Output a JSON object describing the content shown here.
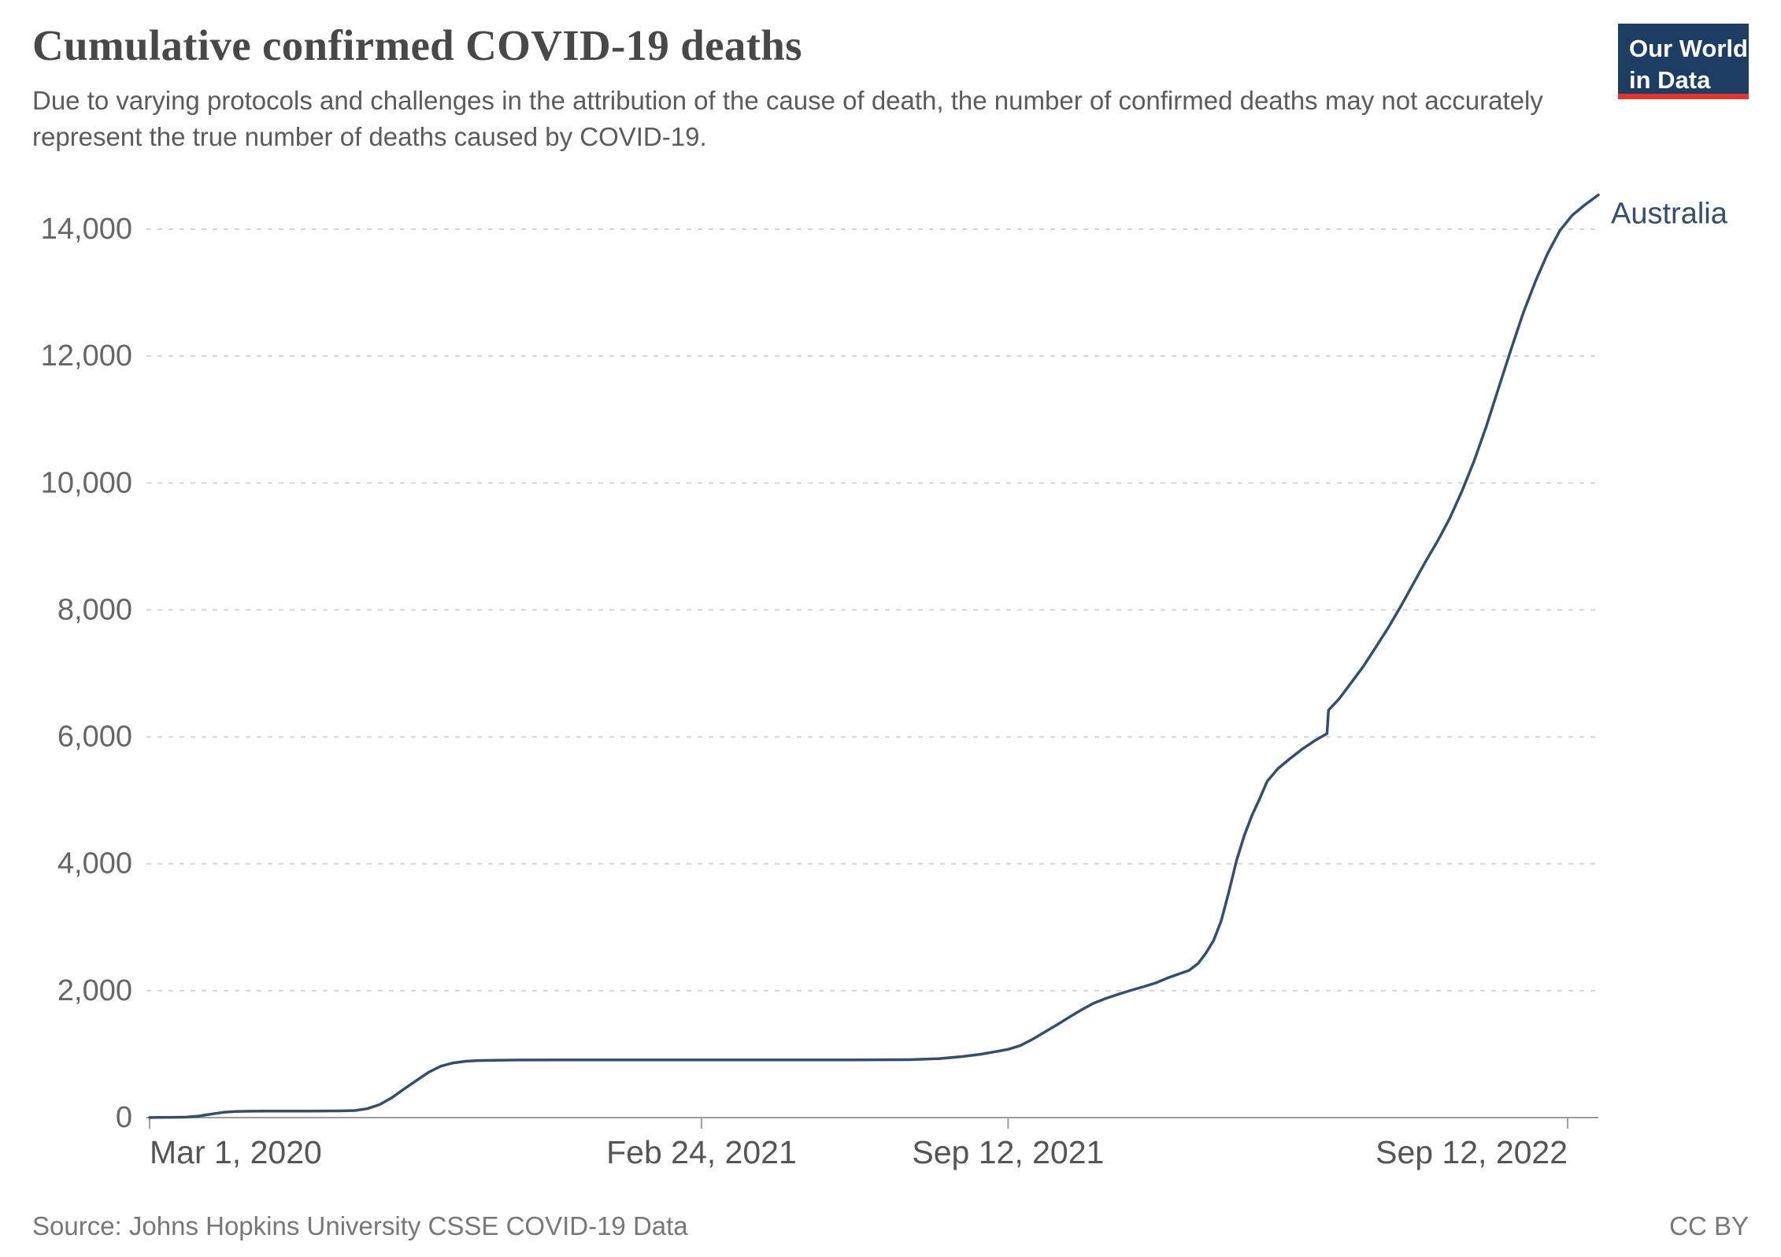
{
  "header": {
    "title": "Cumulative confirmed COVID-19 deaths",
    "subtitle": "Due to varying protocols and challenges in the attribution of the cause of death, the number of confirmed deaths may not accurately represent the true number of deaths caused by COVID-19."
  },
  "logo": {
    "line1": "Our World",
    "line2": "in Data",
    "background": "#1d3d63",
    "stripe": "#e5332d"
  },
  "footer": {
    "source": "Source: Johns Hopkins University CSSE COVID-19 Data",
    "license": "CC BY"
  },
  "chart_data": {
    "type": "line",
    "title": "Cumulative confirmed COVID-19 deaths",
    "xlabel": "",
    "ylabel": "",
    "x_unit": "days since Mar 1, 2020",
    "x_domain": [
      0,
      945
    ],
    "ylim": [
      0,
      14000
    ],
    "grid": true,
    "grid_color": "#d5d5d5",
    "axis_line_color": "#9e9e9e",
    "axis_text_color": "#666666",
    "x_tick_text_color": "#555555",
    "y_ticks": [
      0,
      2000,
      4000,
      6000,
      8000,
      10000,
      12000,
      14000
    ],
    "x_ticks": [
      {
        "day": 0,
        "label": "Mar 1, 2020",
        "align": "start"
      },
      {
        "day": 360,
        "label": "Feb 24, 2021",
        "align": "middle"
      },
      {
        "day": 560,
        "label": "Sep 12, 2021",
        "align": "middle"
      },
      {
        "day": 925,
        "label": "Sep 12, 2022",
        "align": "end"
      }
    ],
    "legend_position": "end-of-line-label",
    "series": [
      {
        "name": "Australia",
        "color": "#344f6e",
        "points": [
          [
            0,
            1
          ],
          [
            8,
            2
          ],
          [
            16,
            5
          ],
          [
            24,
            8
          ],
          [
            32,
            24
          ],
          [
            40,
            54
          ],
          [
            48,
            83
          ],
          [
            56,
            97
          ],
          [
            66,
            100
          ],
          [
            76,
            102
          ],
          [
            88,
            103
          ],
          [
            100,
            103
          ],
          [
            112,
            104
          ],
          [
            124,
            106
          ],
          [
            134,
            112
          ],
          [
            142,
            140
          ],
          [
            150,
            205
          ],
          [
            158,
            313
          ],
          [
            166,
            450
          ],
          [
            174,
            583
          ],
          [
            182,
            715
          ],
          [
            190,
            810
          ],
          [
            198,
            861
          ],
          [
            206,
            888
          ],
          [
            214,
            898
          ],
          [
            224,
            904
          ],
          [
            240,
            907
          ],
          [
            270,
            908
          ],
          [
            310,
            909
          ],
          [
            360,
            909
          ],
          [
            410,
            910
          ],
          [
            460,
            910
          ],
          [
            495,
            912
          ],
          [
            515,
            930
          ],
          [
            530,
            962
          ],
          [
            542,
            998
          ],
          [
            552,
            1040
          ],
          [
            560,
            1076
          ],
          [
            568,
            1135
          ],
          [
            576,
            1235
          ],
          [
            584,
            1350
          ],
          [
            592,
            1465
          ],
          [
            600,
            1585
          ],
          [
            608,
            1700
          ],
          [
            616,
            1805
          ],
          [
            624,
            1880
          ],
          [
            632,
            1945
          ],
          [
            640,
            2005
          ],
          [
            648,
            2060
          ],
          [
            656,
            2120
          ],
          [
            664,
            2200
          ],
          [
            671,
            2260
          ],
          [
            678,
            2320
          ],
          [
            684,
            2430
          ],
          [
            689,
            2590
          ],
          [
            694,
            2790
          ],
          [
            699,
            3100
          ],
          [
            704,
            3560
          ],
          [
            709,
            4050
          ],
          [
            714,
            4440
          ],
          [
            719,
            4760
          ],
          [
            724,
            5020
          ],
          [
            729,
            5300
          ],
          [
            736,
            5500
          ],
          [
            744,
            5660
          ],
          [
            752,
            5810
          ],
          [
            760,
            5940
          ],
          [
            768,
            6050
          ],
          [
            769,
            6420
          ],
          [
            776,
            6600
          ],
          [
            784,
            6860
          ],
          [
            792,
            7120
          ],
          [
            800,
            7420
          ],
          [
            808,
            7720
          ],
          [
            816,
            8050
          ],
          [
            824,
            8400
          ],
          [
            832,
            8750
          ],
          [
            840,
            9080
          ],
          [
            848,
            9440
          ],
          [
            856,
            9870
          ],
          [
            864,
            10350
          ],
          [
            872,
            10900
          ],
          [
            880,
            11500
          ],
          [
            888,
            12100
          ],
          [
            896,
            12680
          ],
          [
            904,
            13180
          ],
          [
            912,
            13620
          ],
          [
            920,
            13980
          ],
          [
            928,
            14220
          ],
          [
            936,
            14380
          ],
          [
            945,
            14540
          ]
        ]
      }
    ]
  }
}
